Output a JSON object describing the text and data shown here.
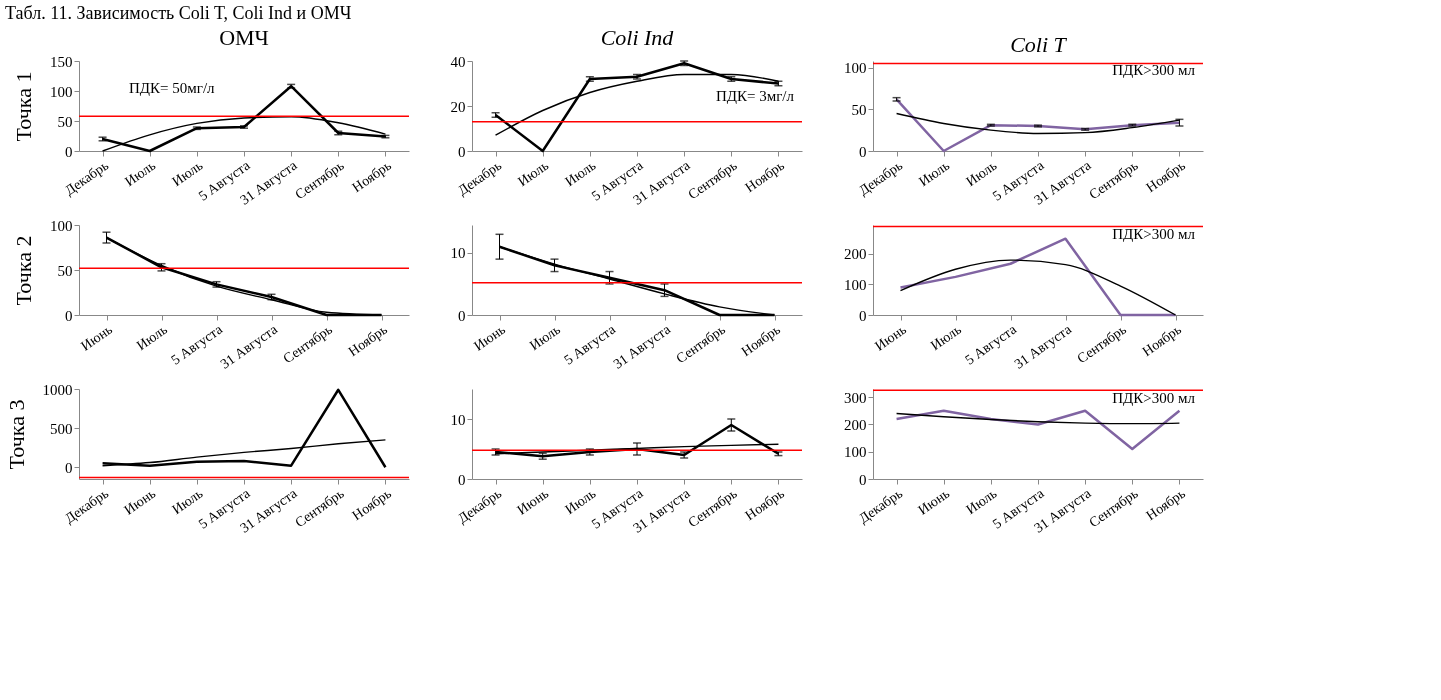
{
  "chart_data": [
    {
      "type": "line",
      "title": "ОМЧ",
      "subtitle": "Табл. 11. Зависимость Coli T, Coli Ind и ОМЧ",
      "ylabel": "Точка 1",
      "categories": [
        "Декабрь",
        "Июль",
        "Июль",
        "5 Августа",
        "31 Августа",
        "Сентябрь",
        "Ноябрь"
      ],
      "ylim": [
        0,
        150
      ],
      "yticks": [
        0,
        50,
        100,
        150
      ],
      "series": [
        {
          "color": "#000000",
          "values": [
            20,
            0,
            38,
            40,
            108,
            30,
            24
          ],
          "errors": [
            3,
            null,
            2,
            2,
            3,
            3,
            2
          ]
        },
        {
          "type": "line",
          "color": "#000000",
          "values": [
            0,
            27,
            46,
            55,
            57,
            47,
            28
          ]
        }
      ],
      "ref_lines": [
        {
          "axis": "y",
          "value": 58,
          "color": "#ff0000"
        }
      ],
      "annotations": [
        "ПДК= 50мг/л"
      ]
    },
    {
      "type": "line",
      "title": "Coli Ind",
      "categories": [
        "Декабрь",
        "Июль",
        "Июль",
        "5 Августа",
        "31 Августа",
        "Сентябрь",
        "Ноябрь"
      ],
      "ylim": [
        0,
        40
      ],
      "yticks": [
        0,
        20,
        40
      ],
      "series": [
        {
          "color": "#000000",
          "values": [
            16,
            0,
            32,
            33,
            39,
            32,
            30
          ],
          "errors": [
            1,
            null,
            1,
            1,
            1,
            1,
            1
          ]
        },
        {
          "type": "line",
          "color": "#000000",
          "values": [
            7,
            18,
            26,
            31,
            34,
            34,
            31
          ]
        }
      ],
      "ref_lines": [
        {
          "axis": "y",
          "value": 13,
          "color": "#ff0000"
        }
      ],
      "annotations": [
        "ПДК= 3мг/л"
      ]
    },
    {
      "type": "line",
      "title": "Coli T",
      "categories": [
        "Декабрь",
        "Июль",
        "Июль",
        "5 Августа",
        "31 Августа",
        "Сентябрь",
        "Ноябрь"
      ],
      "ylim": [
        0,
        108
      ],
      "yticks": [
        0,
        50,
        100
      ],
      "series": [
        {
          "color": "#8064a2",
          "values": [
            62,
            0,
            31,
            30,
            26,
            31,
            34
          ],
          "errors": [
            2,
            null,
            1,
            1,
            1,
            1,
            4
          ]
        },
        {
          "type": "line",
          "color": "#000000",
          "values": [
            45,
            33,
            25,
            21,
            22,
            28,
            37
          ]
        }
      ],
      "ref_lines": [
        {
          "axis": "y",
          "value": 105,
          "color": "#ff0000"
        }
      ],
      "annotations": [
        "ПДК>300 мл"
      ]
    },
    {
      "type": "line",
      "ylabel": "Точка 2",
      "categories": [
        "Июнь",
        "Июль",
        "5 Августа",
        "31 Августа",
        "Сентябрь",
        "Ноябрь"
      ],
      "ylim": [
        0,
        100
      ],
      "yticks": [
        0,
        50,
        100
      ],
      "series": [
        {
          "color": "#000000",
          "values": [
            86,
            53,
            34,
            20,
            0,
            0
          ],
          "errors": [
            6,
            4,
            3,
            3,
            null,
            null
          ]
        },
        {
          "type": "line",
          "color": "#000000",
          "values": [
            86,
            55,
            32,
            17,
            3,
            0
          ]
        }
      ],
      "ref_lines": [
        {
          "axis": "y",
          "value": 52,
          "color": "#ff0000"
        }
      ]
    },
    {
      "type": "line",
      "categories": [
        "Июнь",
        "Июль",
        "5 Августа",
        "31 Августа",
        "Сентябрь",
        "Ноябрь"
      ],
      "ylim": [
        0,
        14.5
      ],
      "yticks": [
        0,
        10
      ],
      "series": [
        {
          "color": "#000000",
          "values": [
            11,
            8,
            6,
            4,
            0,
            0
          ],
          "errors": [
            2,
            1,
            1,
            1,
            null,
            null
          ]
        },
        {
          "type": "line",
          "color": "#000000",
          "values": [
            11,
            8.2,
            5.8,
            3.4,
            1.3,
            0
          ]
        }
      ],
      "ref_lines": [
        {
          "axis": "y",
          "value": 5.2,
          "color": "#ff0000"
        }
      ]
    },
    {
      "type": "line",
      "categories": [
        "Июнь",
        "Июль",
        "5 Августа",
        "31 Августа",
        "Сентябрь",
        "Ноябрь"
      ],
      "ylim": [
        0,
        295
      ],
      "yticks": [
        0,
        100,
        200
      ],
      "series": [
        {
          "color": "#8064a2",
          "values": [
            90,
            125,
            168,
            250,
            0,
            0
          ]
        },
        {
          "type": "line",
          "color": "#000000",
          "values": [
            80,
            150,
            180,
            165,
            95,
            0
          ]
        }
      ],
      "ref_lines": [
        {
          "axis": "y",
          "value": 290,
          "color": "#ff0000"
        }
      ],
      "annotations": [
        "ПДК>300 мл"
      ]
    },
    {
      "type": "line",
      "ylabel": "Точка 3",
      "categories": [
        "Декабрь",
        "Июнь",
        "Июль",
        "5 Августа",
        "31 Августа",
        "Сентябрь",
        "Ноябрь"
      ],
      "ylim": [
        -150,
        1000
      ],
      "yticks": [
        0,
        500,
        1000
      ],
      "series": [
        {
          "color": "#000000",
          "values": [
            50,
            20,
            70,
            80,
            20,
            990,
            0
          ]
        },
        {
          "type": "line",
          "color": "#000000",
          "values": [
            20,
            60,
            130,
            190,
            240,
            300,
            350
          ]
        }
      ],
      "ref_lines": [
        {
          "axis": "y",
          "value": -130,
          "color": "#ff0000"
        }
      ]
    },
    {
      "type": "line",
      "categories": [
        "Декабрь",
        "Июнь",
        "Июль",
        "5 Августа",
        "31 Августа",
        "Сентябрь",
        "Ноябрь"
      ],
      "ylim": [
        0,
        15
      ],
      "yticks": [
        0,
        10
      ],
      "series": [
        {
          "color": "#000000",
          "values": [
            4.5,
            3.8,
            4.5,
            5,
            4,
            9,
            4.2
          ],
          "errors": [
            0.5,
            0.5,
            0.5,
            1,
            0.5,
            1,
            0.3
          ]
        },
        {
          "type": "line",
          "color": "#000000",
          "values": [
            4.2,
            4.5,
            4.8,
            5.1,
            5.4,
            5.6,
            5.8
          ]
        }
      ],
      "ref_lines": [
        {
          "axis": "y",
          "value": 4.8,
          "color": "#ff0000"
        }
      ]
    },
    {
      "type": "line",
      "categories": [
        "Декабрь",
        "Июнь",
        "Июль",
        "5 Августа",
        "31 Августа",
        "Сентябрь",
        "Ноябрь"
      ],
      "ylim": [
        0,
        330
      ],
      "yticks": [
        0,
        100,
        200,
        300
      ],
      "series": [
        {
          "color": "#8064a2",
          "values": [
            220,
            250,
            220,
            200,
            250,
            110,
            250
          ]
        },
        {
          "type": "line",
          "color": "#000000",
          "values": [
            240,
            228,
            218,
            210,
            205,
            203,
            205
          ]
        }
      ],
      "ref_lines": [
        {
          "axis": "y",
          "value": 325,
          "color": "#ff0000"
        }
      ],
      "annotations": [
        "ПДК>300 мл"
      ]
    }
  ]
}
